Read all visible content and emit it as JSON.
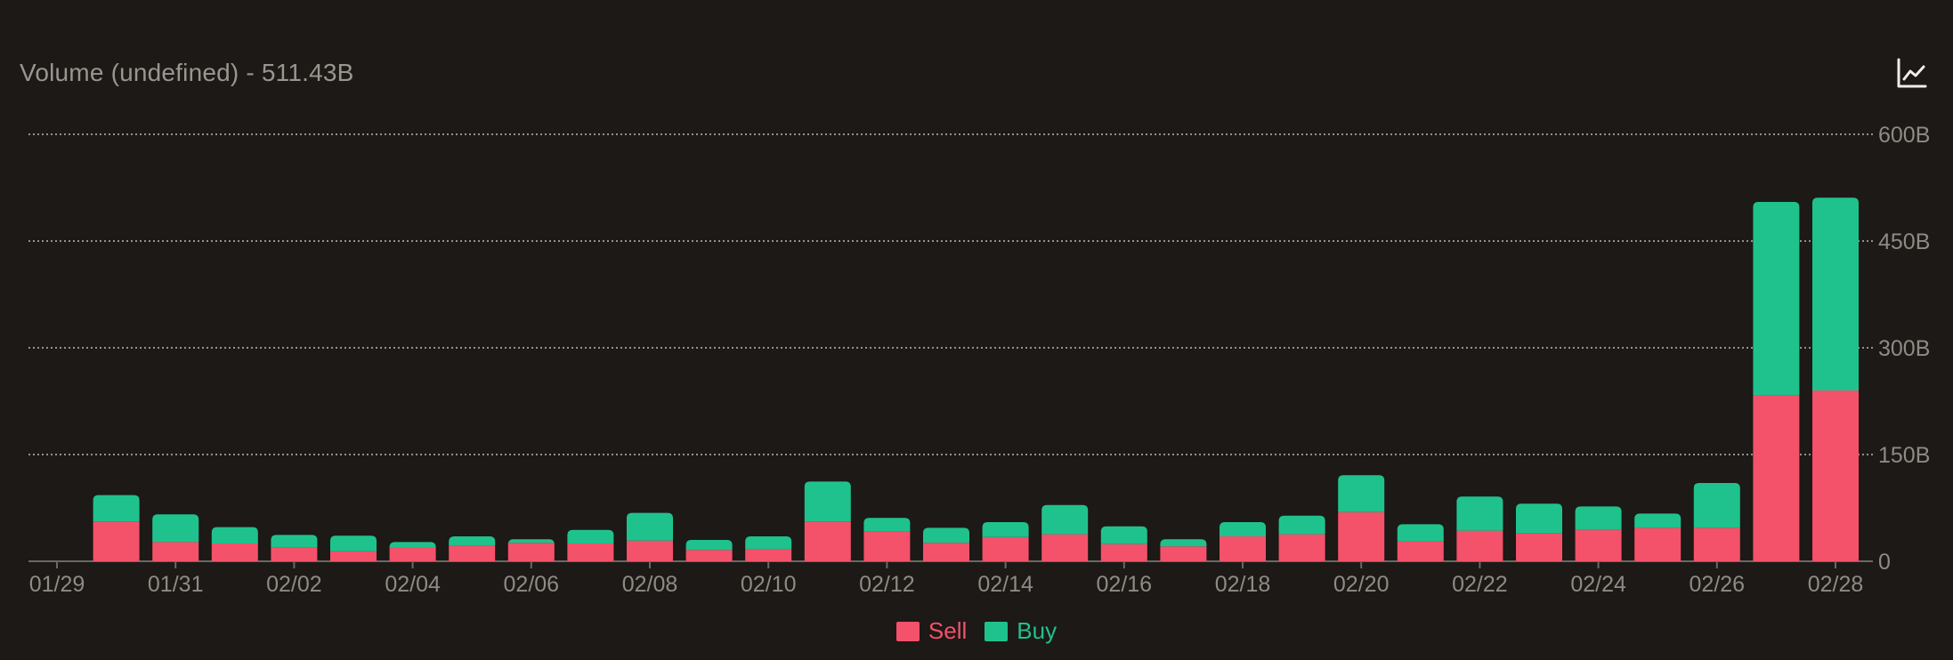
{
  "header": {
    "title": "Volume (undefined) - 511.43B",
    "chart_toggle_icon": "line-chart-icon"
  },
  "colors": {
    "background": "#1c1916",
    "sell": "#f4516a",
    "buy": "#1fc28d",
    "grid": "#bdb8b2",
    "axis_text": "#8f8a84"
  },
  "legend": {
    "sell_label": "Sell",
    "buy_label": "Buy"
  },
  "chart_data": {
    "type": "bar",
    "stacked": true,
    "title": "Volume (undefined) - 511.43B",
    "categories": [
      "01/29",
      "01/30",
      "01/31",
      "02/01",
      "02/02",
      "02/03",
      "02/04",
      "02/05",
      "02/06",
      "02/07",
      "02/08",
      "02/09",
      "02/10",
      "02/11",
      "02/12",
      "02/13",
      "02/14",
      "02/15",
      "02/16",
      "02/17",
      "02/18",
      "02/19",
      "02/20",
      "02/21",
      "02/22",
      "02/23",
      "02/24",
      "02/25",
      "02/26",
      "02/27",
      "02/28"
    ],
    "x_tick_labels": [
      "01/29",
      "01/31",
      "02/02",
      "02/04",
      "02/06",
      "02/08",
      "02/10",
      "02/12",
      "02/14",
      "02/16",
      "02/18",
      "02/20",
      "02/22",
      "02/24",
      "02/26",
      "02/28"
    ],
    "y_tick_labels": [
      "0",
      "150B",
      "300B",
      "450B",
      "600B"
    ],
    "ylim": [
      0,
      600
    ],
    "y_unit": "B",
    "grid": true,
    "legend_position": "bottom-center",
    "series": [
      {
        "name": "Sell",
        "values": [
          null,
          56,
          27,
          25,
          19,
          14,
          20,
          22,
          26,
          25,
          29,
          16,
          17,
          56,
          42,
          26,
          34,
          38,
          24,
          21,
          35,
          38,
          69,
          28,
          43,
          39,
          44,
          47,
          47,
          233,
          240
        ]
      },
      {
        "name": "Buy",
        "values": [
          null,
          37,
          39,
          23,
          18,
          22,
          7,
          13,
          5,
          19,
          39,
          14,
          18,
          56,
          19,
          21,
          21,
          41,
          25,
          10,
          20,
          26,
          52,
          24,
          48,
          42,
          33,
          20,
          63,
          272,
          271
        ]
      }
    ]
  }
}
